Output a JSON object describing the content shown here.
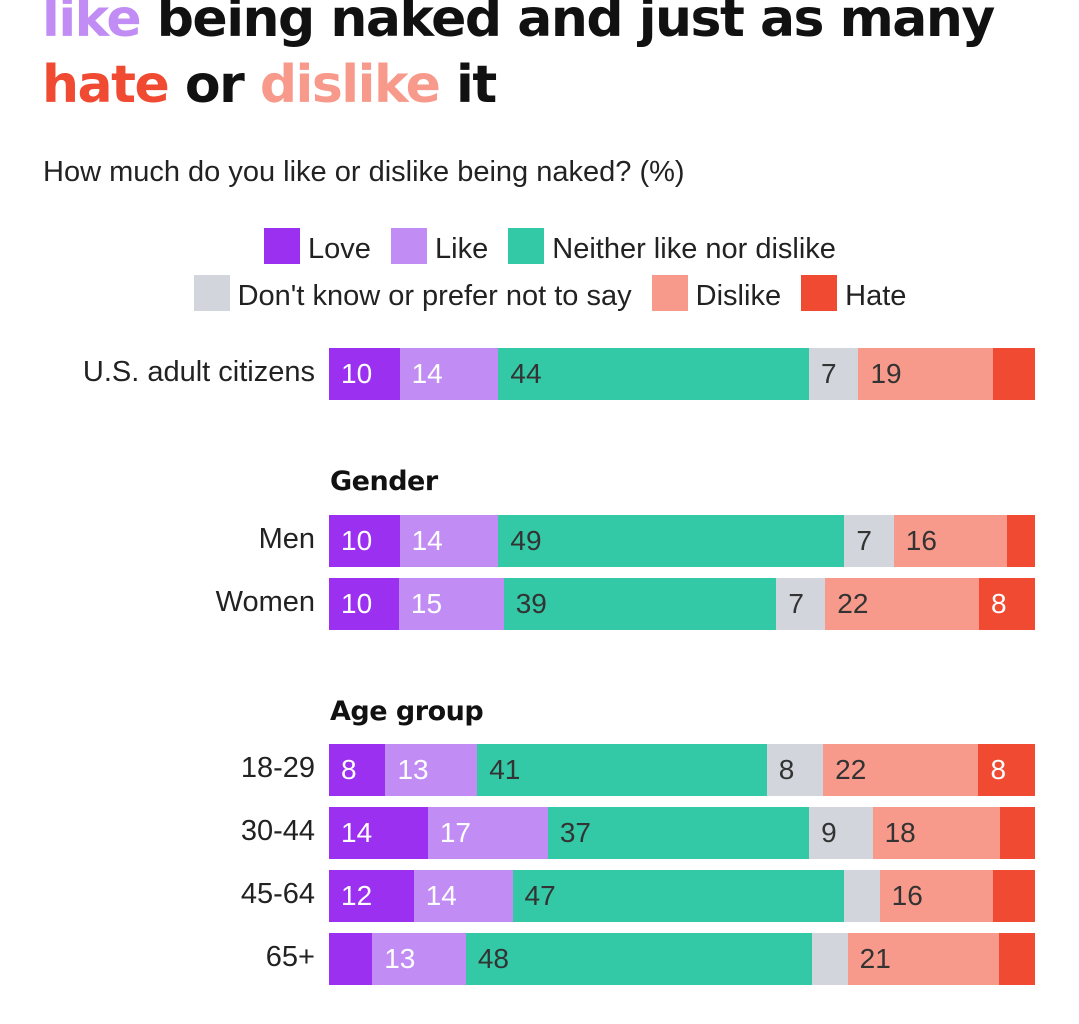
{
  "headline": {
    "line1_like": "like",
    "line1_rest": " being naked and just as many",
    "line2_hate": "hate",
    "line2_or": " or ",
    "line2_dislike": "dislike",
    "line2_it": " it"
  },
  "colors": {
    "love": "#9b30f0",
    "like": "#c28cf5",
    "neither": "#34c9a6",
    "dontknow": "#d2d5db",
    "dislike": "#f79a8b",
    "hate": "#f04a33"
  },
  "chart_data": {
    "type": "bar",
    "orientation": "horizontal-stacked",
    "title": "How much do you like or dislike being naked? (%)",
    "unit": "%",
    "legend": [
      {
        "key": "love",
        "label": "Love"
      },
      {
        "key": "like",
        "label": "Like"
      },
      {
        "key": "neither",
        "label": "Neither like nor dislike"
      },
      {
        "key": "dontknow",
        "label": "Don't know or prefer not to say"
      },
      {
        "key": "dislike",
        "label": "Dislike"
      },
      {
        "key": "hate",
        "label": "Hate"
      }
    ],
    "sections": [
      "Gender",
      "Age group"
    ],
    "rows": [
      {
        "label": "U.S. adult citizens",
        "section": null,
        "values": [
          10,
          14,
          44,
          7,
          19,
          6
        ],
        "shown": [
          "10",
          "14",
          "44",
          "7",
          "19",
          ""
        ]
      },
      {
        "label": "Men",
        "section": "Gender",
        "values": [
          10,
          14,
          49,
          7,
          16,
          4
        ],
        "shown": [
          "10",
          "14",
          "49",
          "7",
          "16",
          ""
        ]
      },
      {
        "label": "Women",
        "section": "Gender",
        "values": [
          10,
          15,
          39,
          7,
          22,
          8
        ],
        "shown": [
          "10",
          "15",
          "39",
          "7",
          "22",
          "8"
        ]
      },
      {
        "label": "18-29",
        "section": "Age group",
        "values": [
          8,
          13,
          41,
          8,
          22,
          8
        ],
        "shown": [
          "8",
          "13",
          "41",
          "8",
          "22",
          "8"
        ]
      },
      {
        "label": "30-44",
        "section": "Age group",
        "values": [
          14,
          17,
          37,
          9,
          18,
          5
        ],
        "shown": [
          "14",
          "17",
          "37",
          "9",
          "18",
          ""
        ]
      },
      {
        "label": "45-64",
        "section": "Age group",
        "values": [
          12,
          14,
          47,
          5,
          16,
          6
        ],
        "shown": [
          "12",
          "14",
          "47",
          "",
          "16",
          ""
        ]
      },
      {
        "label": "65+",
        "section": "Age group",
        "values": [
          6,
          13,
          48,
          5,
          21,
          5
        ],
        "shown": [
          "",
          "13",
          "48",
          "",
          "21",
          ""
        ]
      }
    ]
  }
}
